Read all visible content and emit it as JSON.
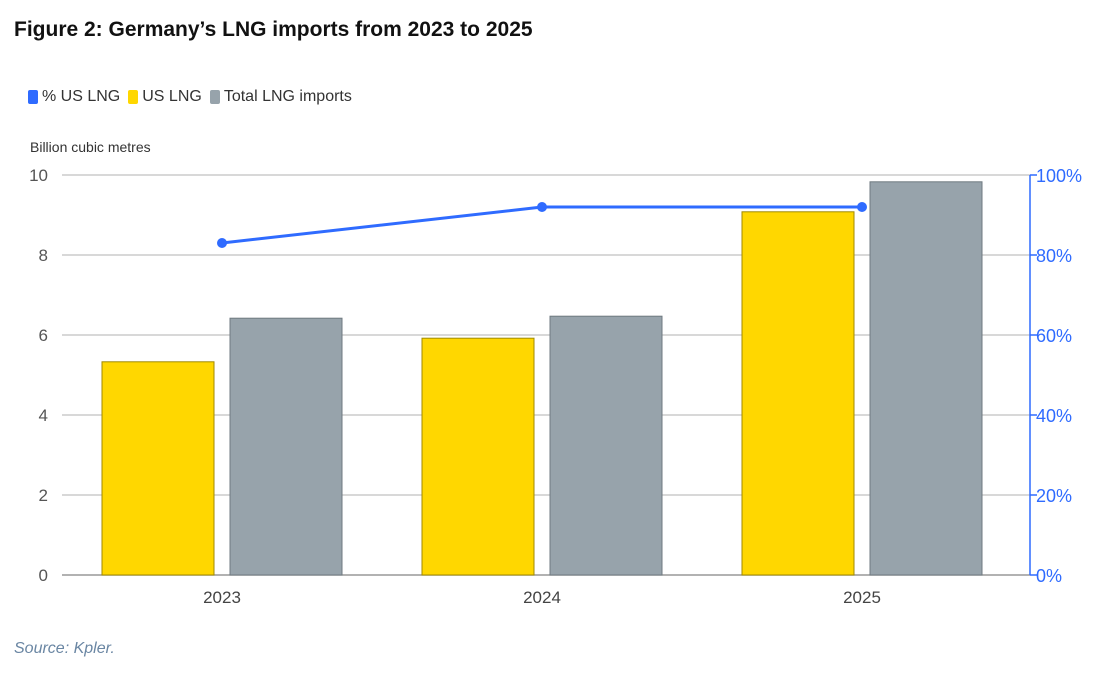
{
  "title": "Figure 2: Germany’s LNG imports from 2023 to 2025",
  "source": "Source: Kpler.",
  "chart_data": {
    "type": "bar",
    "title": "Figure 2: Germany’s LNG imports from 2023 to 2025",
    "ylabel": "Billion cubic metres",
    "categories": [
      "2023",
      "2024",
      "2025"
    ],
    "ylim": [
      0,
      10
    ],
    "yticks": [
      "0",
      "2",
      "4",
      "6",
      "8",
      "10"
    ],
    "y2lim": [
      0,
      100
    ],
    "y2ticks": [
      "0%",
      "20%",
      "40%",
      "60%",
      "80%",
      "100%"
    ],
    "grid": true,
    "legend_placement": "top-left",
    "series": [
      {
        "name": "% US LNG",
        "type": "line",
        "axis": "right",
        "color": "#2f6bff",
        "values": [
          83,
          92,
          92
        ]
      },
      {
        "name": "US LNG",
        "type": "bar",
        "axis": "left",
        "color": "#ffd700",
        "values": [
          5.33,
          5.92,
          9.08
        ]
      },
      {
        "name": "Total LNG imports",
        "type": "bar",
        "axis": "left",
        "color": "#97a3ab",
        "values": [
          6.42,
          6.47,
          9.83
        ]
      }
    ]
  }
}
